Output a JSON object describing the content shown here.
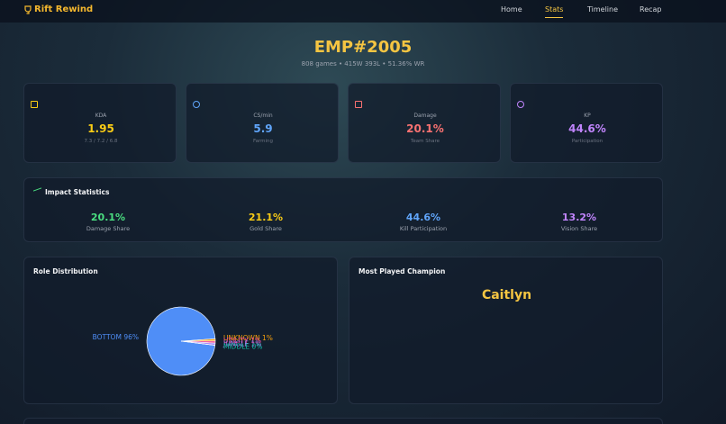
{
  "nav": {
    "brand": "Rift Rewind",
    "items": [
      "Home",
      "Stats",
      "Timeline",
      "Recap"
    ],
    "active": 1
  },
  "header": {
    "title": "EMP#2005",
    "subtitle": "808 games • 415W 393L • 51.36% WR"
  },
  "cards": [
    {
      "label": "KDA",
      "value": 1.95,
      "sub": "7.3 / 7.2 / 6.8",
      "color": "#facc15"
    },
    {
      "label": "CS/min",
      "value": 5.9,
      "sub": "Farming",
      "color": "#60a5fa"
    },
    {
      "label": "Damage",
      "value": "20.1%",
      "sub": "Team Share",
      "color": "#f87171"
    },
    {
      "label": "KP",
      "value": "44.6%",
      "sub": "Participation",
      "color": "#c084fc"
    }
  ],
  "impact": {
    "title": "Impact Statistics",
    "items": [
      {
        "value": "20.1%",
        "label": "Damage Share",
        "color": "#4ade80"
      },
      {
        "value": "21.1%",
        "label": "Gold Share",
        "color": "#facc15"
      },
      {
        "value": "44.6%",
        "label": "Kill Participation",
        "color": "#60a5fa"
      },
      {
        "value": "13.2%",
        "label": "Vision Share",
        "color": "#c084fc"
      }
    ]
  },
  "chart_data": {
    "type": "pie",
    "title": "Role Distribution",
    "categories": [
      "BOTTOM",
      "UNKNOWN",
      "UTILITY",
      "JUNGLE",
      "MIDDLE"
    ],
    "values": [
      96,
      1,
      1,
      1,
      0
    ],
    "value_labels": [
      "96%",
      "1%",
      "1%",
      "1%",
      "0%"
    ],
    "colors": [
      "#4f8ef7",
      "#f59e0b",
      "#ec4899",
      "#a78bfa",
      "#14b8a6"
    ]
  },
  "champion": {
    "title": "Most Played Champion",
    "name": "Caitlyn"
  }
}
